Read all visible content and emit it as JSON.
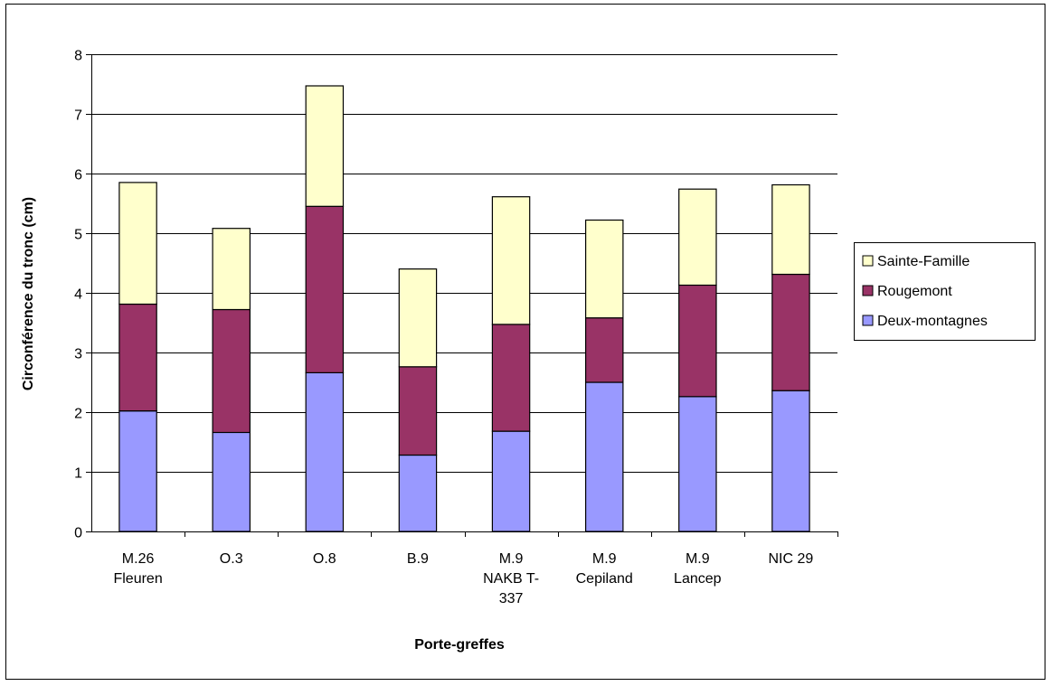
{
  "chart_data": {
    "type": "bar",
    "stacked": true,
    "categories": [
      [
        "M.26",
        "Fleuren"
      ],
      [
        "O.3"
      ],
      [
        "O.8"
      ],
      [
        "B.9"
      ],
      [
        "M.9",
        "NAKB T-",
        "337"
      ],
      [
        "M.9",
        "Cepiland"
      ],
      [
        "M.9",
        "Lancep"
      ],
      [
        "NIC 29"
      ]
    ],
    "series": [
      {
        "name": "Deux-montagnes",
        "color": "#9999ff",
        "values": [
          2.02,
          1.66,
          2.66,
          1.28,
          1.68,
          2.5,
          2.26,
          2.36
        ]
      },
      {
        "name": "Rougemont",
        "color": "#993366",
        "values": [
          1.79,
          2.06,
          2.79,
          1.48,
          1.79,
          1.08,
          1.87,
          1.95
        ]
      },
      {
        "name": "Sainte-Famille",
        "color": "#ffffcc",
        "values": [
          2.04,
          1.36,
          2.02,
          1.64,
          2.14,
          1.64,
          1.61,
          1.5
        ]
      }
    ],
    "ylim": [
      0,
      8
    ],
    "yticks": [
      "0",
      "1",
      "2",
      "3",
      "4",
      "5",
      "6",
      "7",
      "8"
    ],
    "xlabel": "Porte-greffes",
    "ylabel": "Circonférence du tronc (cm)",
    "grid": true,
    "legend_position": "right",
    "legend_order": [
      "Sainte-Famille",
      "Rougemont",
      "Deux-montagnes"
    ]
  }
}
